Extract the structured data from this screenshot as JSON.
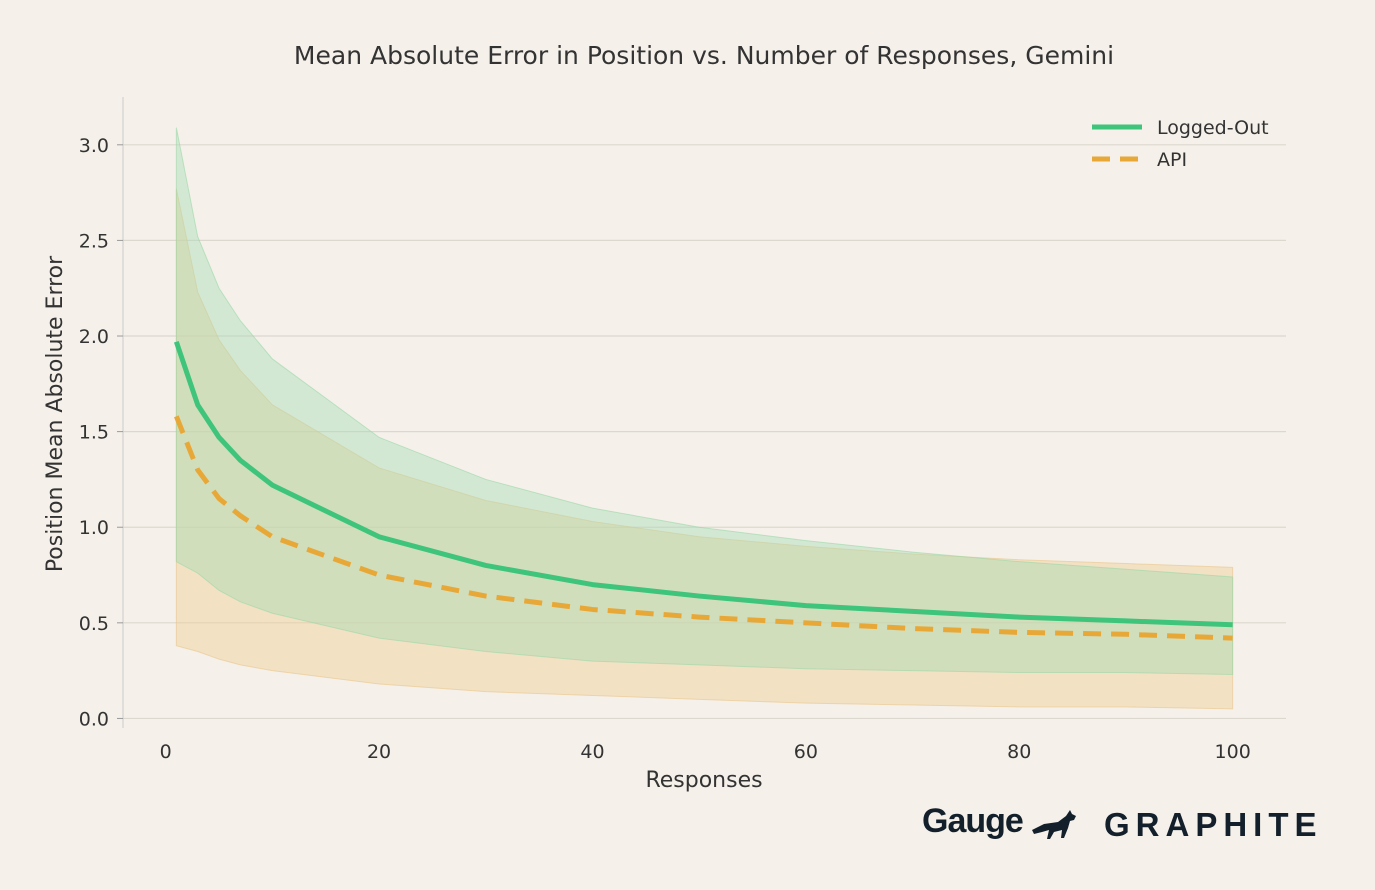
{
  "chart_data": {
    "type": "line",
    "title": "Mean Absolute Error in Position vs. Number of Responses, Gemini",
    "xlabel": "Responses",
    "ylabel": "Position Mean Absolute Error",
    "xlim": [
      -4,
      105
    ],
    "ylim": [
      -0.05,
      3.25
    ],
    "xticks": [
      0,
      20,
      40,
      60,
      80,
      100
    ],
    "yticks": [
      0.0,
      0.5,
      1.0,
      1.5,
      2.0,
      2.5,
      3.0
    ],
    "xtick_labels": [
      "0",
      "20",
      "40",
      "60",
      "80",
      "100"
    ],
    "ytick_labels": [
      "0.0",
      "0.5",
      "1.0",
      "1.5",
      "2.0",
      "2.5",
      "3.0"
    ],
    "grid": "horizontal",
    "legend": "top-right",
    "x": [
      1,
      3,
      5,
      7,
      10,
      20,
      30,
      40,
      50,
      60,
      70,
      80,
      90,
      100
    ],
    "series": [
      {
        "name": "Logged-Out",
        "color": "#3fc47c",
        "style": "solid",
        "values": [
          1.97,
          1.64,
          1.47,
          1.35,
          1.22,
          0.95,
          0.8,
          0.7,
          0.64,
          0.59,
          0.56,
          0.53,
          0.51,
          0.49
        ],
        "upper": [
          3.09,
          2.52,
          2.25,
          2.08,
          1.88,
          1.47,
          1.25,
          1.1,
          1.0,
          0.93,
          0.87,
          0.82,
          0.78,
          0.74
        ],
        "lower": [
          0.82,
          0.76,
          0.67,
          0.61,
          0.55,
          0.42,
          0.35,
          0.3,
          0.28,
          0.26,
          0.25,
          0.24,
          0.24,
          0.23
        ]
      },
      {
        "name": "API",
        "color": "#e8a838",
        "style": "dashed",
        "values": [
          1.58,
          1.3,
          1.15,
          1.06,
          0.95,
          0.75,
          0.64,
          0.57,
          0.53,
          0.5,
          0.47,
          0.45,
          0.44,
          0.42
        ],
        "upper": [
          2.77,
          2.23,
          1.98,
          1.82,
          1.64,
          1.31,
          1.14,
          1.03,
          0.95,
          0.9,
          0.86,
          0.83,
          0.81,
          0.79
        ],
        "lower": [
          0.38,
          0.35,
          0.31,
          0.28,
          0.25,
          0.18,
          0.14,
          0.12,
          0.1,
          0.08,
          0.07,
          0.06,
          0.06,
          0.05
        ]
      }
    ]
  },
  "logos": {
    "gauge": "Gauge",
    "graphite": "GRAPHITE"
  }
}
